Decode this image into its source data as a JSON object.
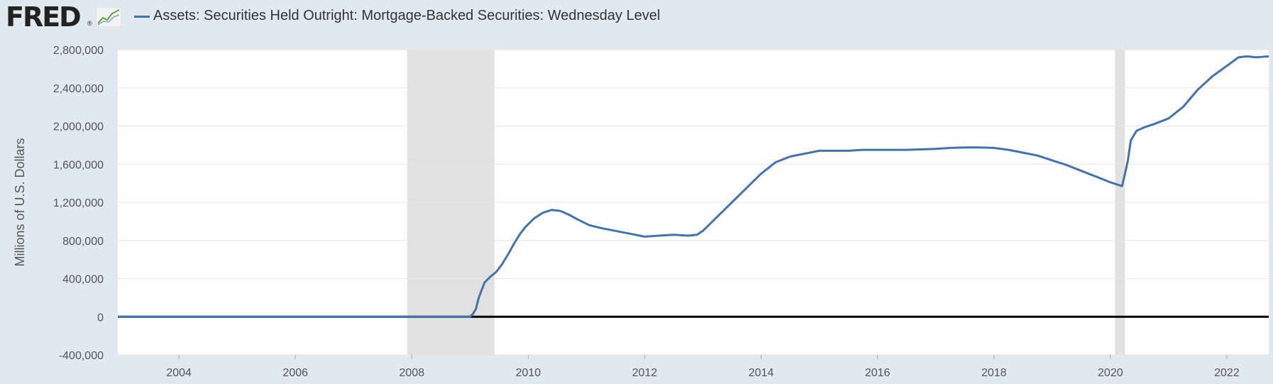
{
  "header": {
    "logo_text": "FRED",
    "logo_mark": "®",
    "logo_icon": "line-graph-icon",
    "legend_label": "Assets: Securities Held Outright: Mortgage-Backed Securities: Wednesday Level"
  },
  "colors": {
    "background": "#e1e9f0",
    "plot_background": "#ffffff",
    "series": "#4572a7",
    "recession": "#e1e1e1",
    "gridline": "#e6e6e6",
    "zero_line": "#000000"
  },
  "chart_data": {
    "type": "line",
    "title": "Assets: Securities Held Outright: Mortgage-Backed Securities: Wednesday Level",
    "xlabel": "",
    "ylabel": "Millions of U.S. Dollars",
    "xlim": [
      2002.95,
      2022.72
    ],
    "ylim": [
      -400000,
      2800000
    ],
    "x_ticks": [
      2004,
      2006,
      2008,
      2010,
      2012,
      2014,
      2016,
      2018,
      2020,
      2022
    ],
    "x_tick_labels": [
      "2004",
      "2006",
      "2008",
      "2010",
      "2012",
      "2014",
      "2016",
      "2018",
      "2020",
      "2022"
    ],
    "y_ticks": [
      -400000,
      0,
      400000,
      800000,
      1200000,
      1600000,
      2000000,
      2400000,
      2800000
    ],
    "y_tick_labels": [
      "-400,000",
      "0",
      "400,000",
      "800,000",
      "1,200,000",
      "1,600,000",
      "2,000,000",
      "2,400,000",
      "2,800,000"
    ],
    "grid": true,
    "recessions": [
      [
        2007.92,
        2009.42
      ],
      [
        2020.08,
        2020.25
      ]
    ],
    "series": [
      {
        "name": "Assets: Securities Held Outright: Mortgage-Backed Securities: Wednesday Level",
        "x": [
          2002.95,
          2008.0,
          2009.0,
          2009.05,
          2009.1,
          2009.15,
          2009.25,
          2009.35,
          2009.45,
          2009.55,
          2009.65,
          2009.75,
          2009.85,
          2009.95,
          2010.1,
          2010.25,
          2010.4,
          2010.55,
          2010.7,
          2010.85,
          2011.05,
          2011.25,
          2011.5,
          2011.75,
          2012.0,
          2012.25,
          2012.5,
          2012.75,
          2012.9,
          2013.0,
          2013.25,
          2013.5,
          2013.75,
          2014.0,
          2014.25,
          2014.5,
          2014.75,
          2015.0,
          2015.25,
          2015.5,
          2015.75,
          2016.0,
          2016.5,
          2017.0,
          2017.25,
          2017.5,
          2017.75,
          2018.0,
          2018.25,
          2018.5,
          2018.75,
          2019.0,
          2019.25,
          2019.5,
          2019.75,
          2020.0,
          2020.1,
          2020.2,
          2020.25,
          2020.3,
          2020.35,
          2020.45,
          2020.6,
          2020.75,
          2021.0,
          2021.25,
          2021.5,
          2021.75,
          2022.0,
          2022.2,
          2022.35,
          2022.5,
          2022.72
        ],
        "values": [
          0,
          0,
          0,
          30000,
          80000,
          200000,
          360000,
          420000,
          470000,
          550000,
          650000,
          760000,
          860000,
          940000,
          1030000,
          1090000,
          1120000,
          1110000,
          1070000,
          1020000,
          960000,
          930000,
          900000,
          870000,
          840000,
          850000,
          860000,
          850000,
          860000,
          900000,
          1050000,
          1200000,
          1350000,
          1500000,
          1620000,
          1680000,
          1710000,
          1740000,
          1740000,
          1740000,
          1750000,
          1750000,
          1750000,
          1760000,
          1770000,
          1775000,
          1775000,
          1770000,
          1750000,
          1720000,
          1690000,
          1640000,
          1590000,
          1530000,
          1470000,
          1410000,
          1390000,
          1370000,
          1500000,
          1640000,
          1850000,
          1950000,
          1990000,
          2020000,
          2080000,
          2200000,
          2380000,
          2520000,
          2630000,
          2720000,
          2730000,
          2720000,
          2730000
        ]
      }
    ]
  }
}
